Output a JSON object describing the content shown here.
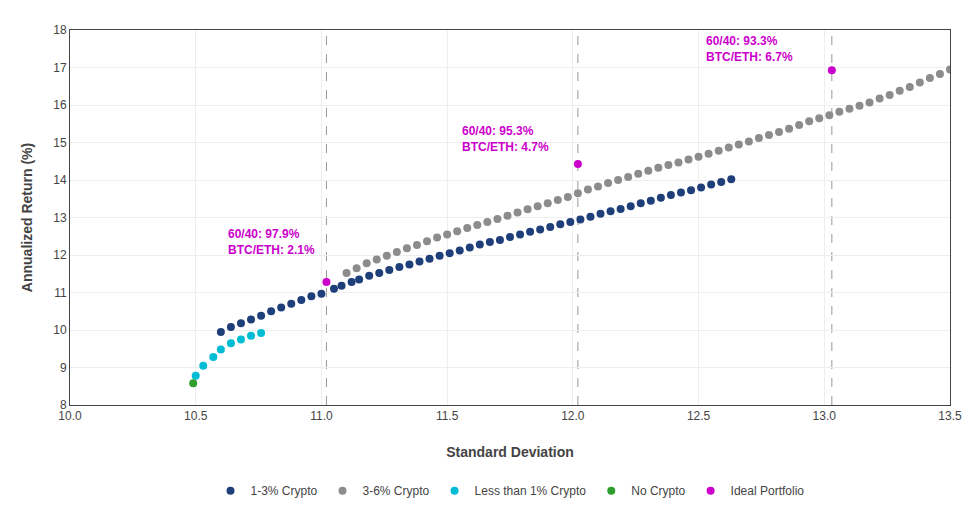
{
  "chart_data": {
    "type": "scatter",
    "title": "",
    "xlabel": "Standard Deviation",
    "ylabel": "Annualized Return (%)",
    "xlim": [
      10,
      13.5
    ],
    "ylim": [
      8,
      18
    ],
    "xticks": [
      {
        "value": 10,
        "label": "10.0"
      },
      {
        "value": 10.5,
        "label": "10.5"
      },
      {
        "value": 11,
        "label": "11.0"
      },
      {
        "value": 11.5,
        "label": "11.5"
      },
      {
        "value": 12,
        "label": "12.0"
      },
      {
        "value": 12.5,
        "label": "12.5"
      },
      {
        "value": 13,
        "label": "13.0"
      },
      {
        "value": 13.5,
        "label": "13.5"
      }
    ],
    "yticks": [
      8,
      9,
      10,
      11,
      12,
      13,
      14,
      15,
      16,
      17,
      18
    ],
    "grid": true,
    "legend": "bottom",
    "marker": "circle",
    "series": [
      {
        "name": "1-3% Crypto",
        "color": "#1f3f7a",
        "x": [
          10.6,
          10.64,
          10.68,
          10.72,
          10.76,
          10.8,
          10.84,
          10.88,
          10.92,
          10.96,
          11.0,
          11.05,
          11.08,
          11.12,
          11.15,
          11.19,
          11.23,
          11.27,
          11.31,
          11.35,
          11.39,
          11.43,
          11.47,
          11.51,
          11.55,
          11.59,
          11.63,
          11.67,
          11.71,
          11.75,
          11.79,
          11.83,
          11.87,
          11.91,
          11.95,
          11.99,
          12.03,
          12.07,
          12.11,
          12.15,
          12.19,
          12.23,
          12.27,
          12.31,
          12.35,
          12.39,
          12.43,
          12.47,
          12.51,
          12.55,
          12.59,
          12.63
        ],
        "values": [
          9.95,
          10.08,
          10.18,
          10.28,
          10.38,
          10.5,
          10.6,
          10.7,
          10.8,
          10.9,
          10.97,
          11.1,
          11.18,
          11.28,
          11.35,
          11.45,
          11.52,
          11.6,
          11.68,
          11.75,
          11.83,
          11.9,
          11.98,
          12.05,
          12.12,
          12.2,
          12.28,
          12.35,
          12.4,
          12.48,
          12.55,
          12.62,
          12.68,
          12.75,
          12.82,
          12.88,
          12.95,
          13.02,
          13.1,
          13.17,
          13.23,
          13.3,
          13.38,
          13.45,
          13.53,
          13.6,
          13.67,
          13.73,
          13.8,
          13.88,
          13.95,
          14.02
        ]
      },
      {
        "name": "3-6% Crypto",
        "color": "#8c8c8c",
        "x": [
          11.1,
          11.14,
          11.18,
          11.22,
          11.26,
          11.3,
          11.34,
          11.38,
          11.42,
          11.46,
          11.5,
          11.54,
          11.58,
          11.62,
          11.66,
          11.7,
          11.74,
          11.78,
          11.82,
          11.86,
          11.9,
          11.94,
          11.98,
          12.02,
          12.06,
          12.1,
          12.14,
          12.18,
          12.22,
          12.26,
          12.3,
          12.34,
          12.38,
          12.42,
          12.46,
          12.5,
          12.54,
          12.58,
          12.62,
          12.66,
          12.7,
          12.74,
          12.78,
          12.82,
          12.86,
          12.9,
          12.94,
          12.98,
          13.02,
          13.06,
          13.1,
          13.14,
          13.18,
          13.22,
          13.26,
          13.3,
          13.34,
          13.38,
          13.42,
          13.46,
          13.5
        ],
        "values": [
          11.52,
          11.65,
          11.78,
          11.88,
          11.98,
          12.08,
          12.18,
          12.27,
          12.37,
          12.47,
          12.55,
          12.63,
          12.72,
          12.8,
          12.88,
          12.96,
          13.05,
          13.13,
          13.22,
          13.3,
          13.38,
          13.47,
          13.55,
          13.65,
          13.75,
          13.83,
          13.92,
          14.0,
          14.08,
          14.17,
          14.25,
          14.33,
          14.4,
          14.47,
          14.55,
          14.62,
          14.7,
          14.78,
          14.87,
          14.95,
          15.03,
          15.12,
          15.2,
          15.28,
          15.37,
          15.47,
          15.57,
          15.65,
          15.73,
          15.82,
          15.9,
          15.98,
          16.07,
          16.17,
          16.27,
          16.38,
          16.48,
          16.6,
          16.72,
          16.83,
          16.95
        ]
      },
      {
        "name": "Less than 1% Crypto",
        "color": "#00bcd4",
        "x": [
          10.5,
          10.53,
          10.57,
          10.6,
          10.64,
          10.68,
          10.72,
          10.76
        ],
        "values": [
          8.78,
          9.05,
          9.28,
          9.48,
          9.65,
          9.75,
          9.85,
          9.92
        ]
      },
      {
        "name": "No Crypto",
        "color": "#2e9e2e",
        "x": [
          10.49
        ],
        "values": [
          8.58
        ]
      },
      {
        "name": "Ideal Portfolio",
        "color": "#cc00cc",
        "x": [
          11.02,
          12.02,
          13.03
        ],
        "values": [
          11.28,
          14.43,
          16.93
        ]
      }
    ],
    "annotations": [
      {
        "x": 10.62,
        "y": 11.9,
        "text": "60/40: 97.9%\nBTC/ETH: 2.1%",
        "color": "#cc00cc"
      },
      {
        "x": 11.55,
        "y": 14.65,
        "text": "60/40: 95.3%\nBTC/ETH: 4.7%",
        "color": "#cc00cc"
      },
      {
        "x": 12.52,
        "y": 17.05,
        "text": "60/40: 93.3%\nBTC/ETH: 6.7%",
        "color": "#cc00cc"
      }
    ],
    "vlines": [
      11.02,
      12.02,
      13.03
    ]
  }
}
